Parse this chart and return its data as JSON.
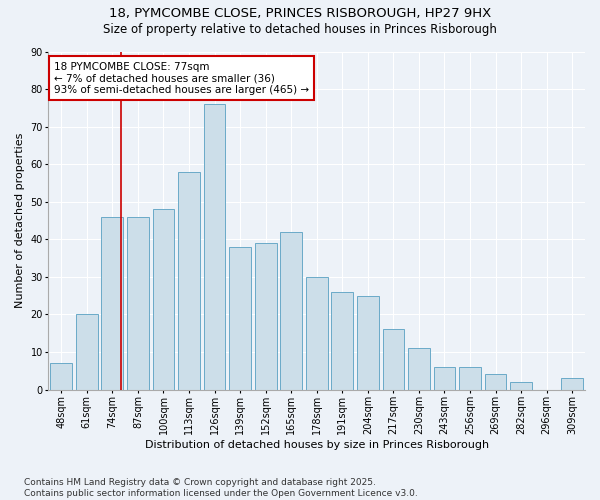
{
  "title_line1": "18, PYMCOMBE CLOSE, PRINCES RISBOROUGH, HP27 9HX",
  "title_line2": "Size of property relative to detached houses in Princes Risborough",
  "xlabel": "Distribution of detached houses by size in Princes Risborough",
  "ylabel": "Number of detached properties",
  "categories": [
    "48sqm",
    "61sqm",
    "74sqm",
    "87sqm",
    "100sqm",
    "113sqm",
    "126sqm",
    "139sqm",
    "152sqm",
    "165sqm",
    "178sqm",
    "191sqm",
    "204sqm",
    "217sqm",
    "230sqm",
    "243sqm",
    "256sqm",
    "269sqm",
    "282sqm",
    "296sqm",
    "309sqm"
  ],
  "values": [
    7,
    20,
    46,
    46,
    48,
    58,
    76,
    38,
    39,
    42,
    30,
    26,
    25,
    16,
    11,
    6,
    6,
    4,
    2,
    0,
    3
  ],
  "bar_color": "#ccdee9",
  "bar_edge_color": "#6aaac8",
  "ylim": [
    0,
    90
  ],
  "yticks": [
    0,
    10,
    20,
    30,
    40,
    50,
    60,
    70,
    80,
    90
  ],
  "vline_color": "#cc0000",
  "annotation_text": "18 PYMCOMBE CLOSE: 77sqm\n← 7% of detached houses are smaller (36)\n93% of semi-detached houses are larger (465) →",
  "annotation_box_color": "#ffffff",
  "annotation_box_edgecolor": "#cc0000",
  "footer_text": "Contains HM Land Registry data © Crown copyright and database right 2025.\nContains public sector information licensed under the Open Government Licence v3.0.",
  "background_color": "#edf2f8",
  "plot_bg_color": "#edf2f8",
  "grid_color": "#ffffff",
  "title_fontsize": 9.5,
  "subtitle_fontsize": 8.5,
  "xlabel_fontsize": 8,
  "ylabel_fontsize": 8,
  "tick_fontsize": 7,
  "footer_fontsize": 6.5,
  "annotation_fontsize": 7.5
}
